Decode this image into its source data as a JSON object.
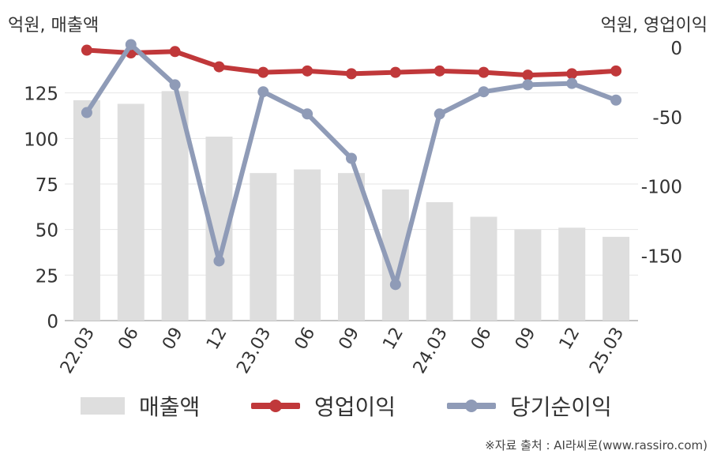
{
  "units": {
    "left": "억원, 매출액",
    "right": "억원, 영업이익"
  },
  "source": "※자료 출처 : AI라씨로(www.rassiro.com)",
  "colors": {
    "revenue": "#dedede",
    "operating": "#c0383a",
    "net": "#8f9bb7",
    "grid": "#e6e6e6",
    "axis": "#b0b0b0"
  },
  "chart_data": {
    "type": "bar+line",
    "categories": [
      "22.03",
      "06",
      "09",
      "12",
      "23.03",
      "06",
      "09",
      "12",
      "24.03",
      "06",
      "09",
      "12",
      "25.03"
    ],
    "left_axis": {
      "ticks": [
        0,
        25,
        50,
        75,
        100,
        125
      ],
      "range": [
        0,
        150
      ]
    },
    "right_axis": {
      "ticks": [
        0,
        -50,
        -100,
        -150
      ],
      "range": [
        -197,
        0
      ]
    },
    "series": [
      {
        "name": "매출액",
        "kind": "bar",
        "axis": "left",
        "values": [
          121,
          119,
          126,
          101,
          81,
          83,
          81,
          72,
          65,
          57,
          50,
          51,
          46
        ]
      },
      {
        "name": "영업이익",
        "kind": "line",
        "axis": "right",
        "values": [
          -2,
          -4,
          -3,
          -14,
          -18,
          -17,
          -19,
          -18,
          -17,
          -18,
          -20,
          -19,
          -17
        ]
      },
      {
        "name": "당기순이익",
        "kind": "line",
        "axis": "right",
        "values": [
          -47,
          2,
          -27,
          -154,
          -32,
          -48,
          -80,
          -171,
          -48,
          -32,
          -27,
          -26,
          -38
        ]
      }
    ],
    "legend": [
      "매출액",
      "영업이익",
      "당기순이익"
    ],
    "legend_position": "bottom"
  }
}
